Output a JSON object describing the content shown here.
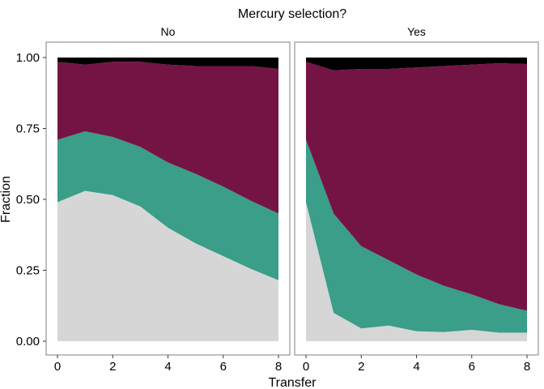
{
  "chart_data": {
    "type": "area",
    "stacked": true,
    "title": "Mercury selection?",
    "xlabel": "Transfer",
    "ylabel": "Fraction",
    "xlim": [
      0,
      8
    ],
    "ylim": [
      0,
      1
    ],
    "xticks": [
      "0",
      "2",
      "4",
      "6",
      "8"
    ],
    "yticks": [
      "0.00",
      "0.25",
      "0.50",
      "0.75",
      "1.00"
    ],
    "grid": false,
    "legend": "none",
    "series_colors": [
      "#d6d6d6",
      "#3a9e88",
      "#741445",
      "#000000"
    ],
    "panels": [
      {
        "label": "No",
        "x": [
          0,
          1,
          2,
          3,
          4,
          5,
          6,
          7,
          8
        ],
        "series": [
          {
            "values": [
              0.49,
              0.53,
              0.515,
              0.475,
              0.4,
              0.345,
              0.3,
              0.255,
              0.215
            ]
          },
          {
            "values": [
              0.22,
              0.21,
              0.205,
              0.21,
              0.23,
              0.245,
              0.245,
              0.24,
              0.235
            ]
          },
          {
            "values": [
              0.275,
              0.235,
              0.265,
              0.3,
              0.345,
              0.38,
              0.425,
              0.475,
              0.51
            ]
          },
          {
            "values": [
              0.015,
              0.025,
              0.015,
              0.015,
              0.025,
              0.03,
              0.03,
              0.03,
              0.04
            ]
          }
        ]
      },
      {
        "label": "Yes",
        "x": [
          0,
          1,
          2,
          3,
          4,
          5,
          6,
          7,
          8
        ],
        "series": [
          {
            "values": [
              0.49,
              0.1,
              0.045,
              0.055,
              0.035,
              0.032,
              0.04,
              0.03,
              0.03
            ]
          },
          {
            "values": [
              0.22,
              0.35,
              0.29,
              0.23,
              0.2,
              0.163,
              0.125,
              0.1,
              0.077
            ]
          },
          {
            "values": [
              0.275,
              0.505,
              0.625,
              0.675,
              0.73,
              0.775,
              0.81,
              0.85,
              0.87
            ]
          },
          {
            "values": [
              0.015,
              0.045,
              0.04,
              0.04,
              0.035,
              0.03,
              0.025,
              0.02,
              0.023
            ]
          }
        ]
      }
    ]
  }
}
